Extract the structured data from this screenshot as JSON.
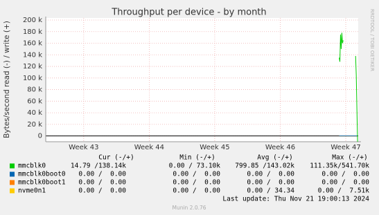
{
  "chart_data": {
    "type": "line",
    "title": "Throughput per device - by month",
    "y_label": "Bytes/second read (-) / write (+)",
    "side_label": "RRDTOOL / TOBI OETIKER",
    "footer": "Munin 2.0.76",
    "last_update": "Last update: Thu Nov 21 19:00:13 2024",
    "xlim": [
      42.42,
      47.19
    ],
    "xticks": [
      {
        "value": 43,
        "label": "Week 43"
      },
      {
        "value": 44,
        "label": "Week 44"
      },
      {
        "value": 45,
        "label": "Week 45"
      },
      {
        "value": 46,
        "label": "Week 46"
      },
      {
        "value": 47,
        "label": "Week 47"
      }
    ],
    "ylim": [
      -10000,
      200000
    ],
    "yticks": [
      {
        "value": 0,
        "label": "0"
      },
      {
        "value": 20000,
        "label": "20 k"
      },
      {
        "value": 40000,
        "label": "40 k"
      },
      {
        "value": 60000,
        "label": "60 k"
      },
      {
        "value": 80000,
        "label": "80 k"
      },
      {
        "value": 100000,
        "label": "100 k"
      },
      {
        "value": 120000,
        "label": "120 k"
      },
      {
        "value": 140000,
        "label": "140 k"
      },
      {
        "value": 160000,
        "label": "160 k"
      },
      {
        "value": 180000,
        "label": "180 k"
      },
      {
        "value": 200000,
        "label": "200 k"
      }
    ],
    "grid": true,
    "x": [
      46.9,
      46.91,
      46.92,
      46.93,
      46.94,
      46.95,
      46.96,
      47.1,
      47.15,
      47.16,
      47.18
    ],
    "series": [
      {
        "name": "mmcblk0",
        "color": "#00cc00",
        "values": [
          135000,
          128000,
          175000,
          150000,
          178000,
          160000,
          165000,
          null,
          138000,
          105000,
          -10000
        ]
      },
      {
        "name": "mmcblk0boot0",
        "color": "#0066b3",
        "values": [
          0,
          0,
          0,
          0,
          0,
          0,
          0,
          0,
          0,
          0,
          0
        ]
      },
      {
        "name": "mmcblk0boot1",
        "color": "#ff8000",
        "values": [
          0,
          0,
          0,
          0,
          0,
          0,
          0,
          0,
          0,
          0,
          0
        ]
      },
      {
        "name": "nvme0n1",
        "color": "#ffcc00",
        "values": [
          0,
          0,
          0,
          0,
          0,
          0,
          0,
          0,
          0,
          0,
          0
        ]
      }
    ],
    "legend_stats": {
      "headers": [
        "Cur (-/+)",
        "Min (-/+)",
        "Avg (-/+)",
        "Max (-/+)"
      ],
      "rows": [
        [
          "14.79 /138.14k",
          "0.00 / 73.10k",
          "799.85 /143.02k",
          "111.35k/541.70k"
        ],
        [
          "0.00 /  0.00",
          "0.00 /  0.00",
          "0.00 /  0.00",
          "0.00 /  0.00"
        ],
        [
          "0.00 /  0.00",
          "0.00 /  0.00",
          "0.00 /  0.00",
          "0.00 /  0.00"
        ],
        [
          "0.00 /  0.00",
          "0.00 /  0.00",
          "0.00 / 34.34",
          "0.00 /  7.51k"
        ]
      ]
    }
  }
}
